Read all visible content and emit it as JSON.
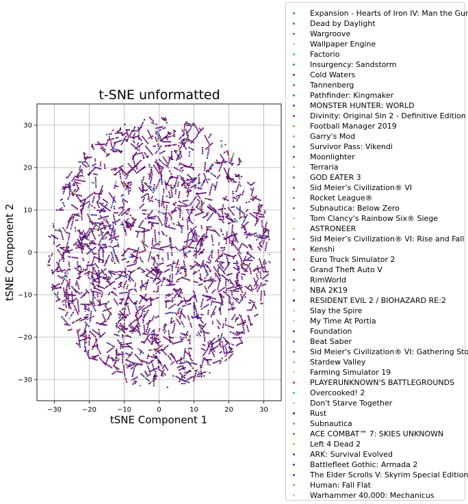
{
  "chart_data": {
    "type": "scatter",
    "title": "t-SNE unformatted",
    "xlabel": "tSNE Component 1",
    "ylabel": "tSNE Component 2",
    "xlim": [
      -35,
      35
    ],
    "ylim": [
      -35,
      35
    ],
    "xticks": [
      -30,
      -20,
      -10,
      0,
      10,
      20,
      30
    ],
    "yticks": [
      -30,
      -20,
      -10,
      0,
      10,
      20,
      30
    ],
    "xtick_labels": [
      "−30",
      "−20",
      "−10",
      "0",
      "10",
      "20",
      "30"
    ],
    "ytick_labels": [
      "−30",
      "−20",
      "−10",
      "0",
      "10",
      "20",
      "30"
    ],
    "grid": true,
    "legend_position": "outside-right",
    "point_cloud": {
      "shape": "disc",
      "center": [
        0,
        0
      ],
      "radius": 32,
      "dominant_color": "#5e0a6e"
    },
    "series": [
      {
        "name": "Expansion - Hearts of Iron IV: Man the Guns",
        "color": "#2ca02c"
      },
      {
        "name": "Dead by Daylight",
        "color": "#1f77b4"
      },
      {
        "name": "Wargroove",
        "color": "#6a5acd"
      },
      {
        "name": "Wallpaper Engine",
        "color": "#98df8a"
      },
      {
        "name": "Factorio",
        "color": "#17becf"
      },
      {
        "name": "Insurgency: Sandstorm",
        "color": "#2ca02c"
      },
      {
        "name": "Cold Waters",
        "color": "#1f3fb4"
      },
      {
        "name": "Tannenberg",
        "color": "#2ca02c"
      },
      {
        "name": "Pathfinder: Kingmaker",
        "color": "#1f77b4"
      },
      {
        "name": "MONSTER HUNTER: WORLD",
        "color": "#3b3bc4"
      },
      {
        "name": "Divinity: Original Sin 2 - Definitive Edition",
        "color": "#d62728"
      },
      {
        "name": "Football Manager 2019",
        "color": "#ff7f0e"
      },
      {
        "name": "Garry's Mod",
        "color": "#e377c2"
      },
      {
        "name": "Survivor Pass: Vikendi",
        "color": "#1f77b4"
      },
      {
        "name": "Moonlighter",
        "color": "#4040ff"
      },
      {
        "name": "Terraria",
        "color": "#bcbd22"
      },
      {
        "name": "GOD EATER 3",
        "color": "#8c564b"
      },
      {
        "name": "Sid Meier’s Civilization® VI",
        "color": "#7f3f7f"
      },
      {
        "name": "Rocket League®",
        "color": "#9467bd"
      },
      {
        "name": "Subnautica: Below Zero",
        "color": "#1f77b4"
      },
      {
        "name": "Tom Clancy's Rainbow Six® Siege",
        "color": "#aec7e8"
      },
      {
        "name": "ASTRONEER",
        "color": "#ffbb78"
      },
      {
        "name": "Sid Meier’s Civilization® VI: Rise and Fall",
        "color": "#9467bd"
      },
      {
        "name": "Kenshi",
        "color": "#e6194b"
      },
      {
        "name": "Euro Truck Simulator 2",
        "color": "#d62728"
      },
      {
        "name": "Grand Theft Auto V",
        "color": "#6b2fa0"
      },
      {
        "name": "RimWorld",
        "color": "#8c564b"
      },
      {
        "name": "NBA 2K19",
        "color": "#c5b0d5"
      },
      {
        "name": "RESIDENT EVIL 2 / BIOHAZARD RE:2",
        "color": "#0000ff"
      },
      {
        "name": "Slay the Spire",
        "color": "#f7b6d2"
      },
      {
        "name": "My Time At Portia",
        "color": "#9edae5"
      },
      {
        "name": "Foundation",
        "color": "#1f3fd4"
      },
      {
        "name": "Beat Saber",
        "color": "#3f5fff"
      },
      {
        "name": "Sid Meier's Civilization® VI: Gathering Storm",
        "color": "#1f77b4"
      },
      {
        "name": "Stardew Valley",
        "color": "#e7969c"
      },
      {
        "name": "Farming Simulator 19",
        "color": "#dbdb8d"
      },
      {
        "name": "PLAYERUNKNOWN'S BATTLEGROUNDS",
        "color": "#d62728"
      },
      {
        "name": "Overcooked! 2",
        "color": "#17becf"
      },
      {
        "name": "Don't Starve Together",
        "color": "#c7c7c7"
      },
      {
        "name": "Rust",
        "color": "#5e0a6e"
      },
      {
        "name": "Subnautica",
        "color": "#7f7fff"
      },
      {
        "name": "ACE COMBAT™ 7: SKIES UNKNOWN",
        "color": "#8c6d31"
      },
      {
        "name": "Left 4 Dead 2",
        "color": "#bcbd22"
      },
      {
        "name": "ARK: Survival Evolved",
        "color": "#1f3fb4"
      },
      {
        "name": "Battlefleet Gothic: Armada 2",
        "color": "#2f2fd4"
      },
      {
        "name": "The Elder Scrolls V: Skyrim Special Edition",
        "color": "#393b79"
      },
      {
        "name": "Human: Fall Flat",
        "color": "#ff7f0e"
      },
      {
        "name": "Warhammer 40,000: Mechanicus",
        "color": "#98df8a"
      }
    ]
  }
}
